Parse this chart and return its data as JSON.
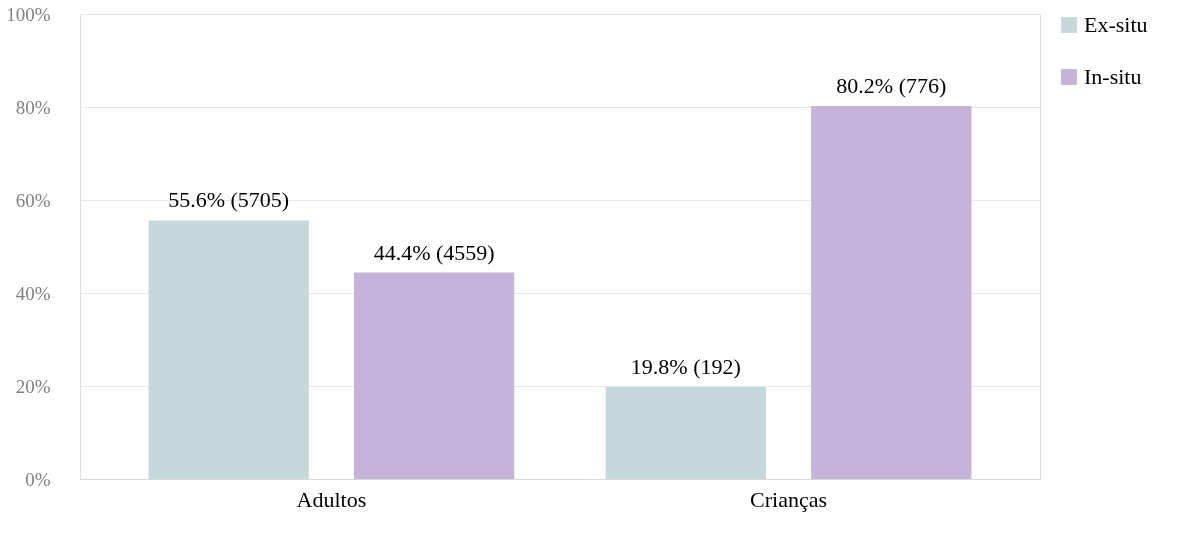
{
  "chart_data": {
    "type": "bar",
    "categories": [
      "Adultos",
      "Crianças"
    ],
    "series": [
      {
        "name": "Ex-situ",
        "color": "#c5d9dc",
        "values": [
          55.6,
          19.8
        ],
        "value_labels": [
          "55.6% (5705)",
          "19.8% (192)"
        ]
      },
      {
        "name": "In-situ",
        "color": "#c5b3d9",
        "values": [
          44.4,
          80.2
        ],
        "value_labels": [
          "44.4% (4559)",
          "80.2% (776)"
        ]
      }
    ],
    "ylim": [
      0,
      100
    ],
    "yticks": [
      {
        "value": 0,
        "label": "0%"
      },
      {
        "value": 20,
        "label": "20%"
      },
      {
        "value": 40,
        "label": "40%"
      },
      {
        "value": 60,
        "label": "60%"
      },
      {
        "value": 80,
        "label": "80%"
      },
      {
        "value": 100,
        "label": "100%"
      }
    ],
    "grid": "y",
    "legend": "right"
  }
}
